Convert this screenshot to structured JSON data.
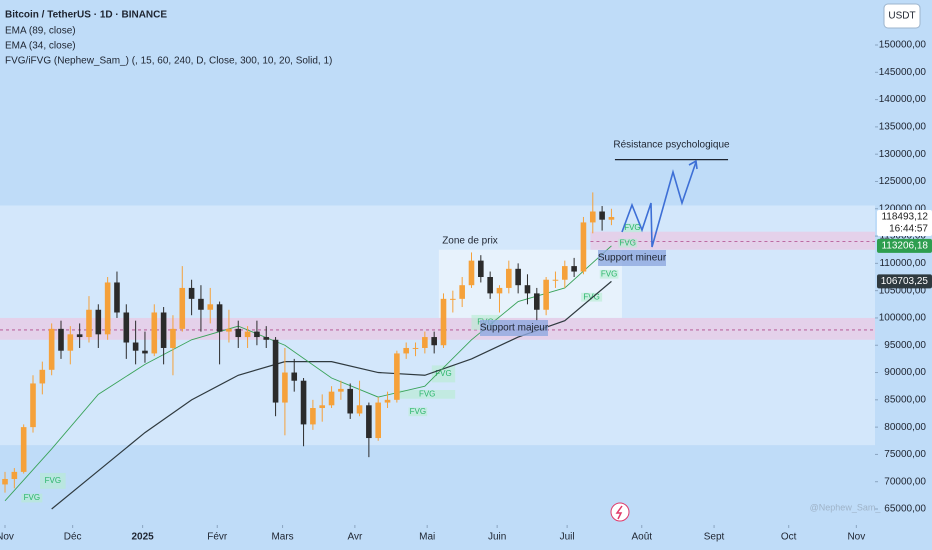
{
  "chart_data": {
    "type": "candlestick",
    "title": "Bitcoin / TetherUS · 1D · BINANCE",
    "currency": "USDT",
    "watermark": "@Nephew_Sam_",
    "indicator": "FVG/iFVG (Nephew_Sam_) (, 15, 60, 240, D, Close, 300, 10, 20, Solid, 1)",
    "up_color": "#f5a13a",
    "down_color": "#2b2b2b",
    "xlim": [
      -2.15,
      373
    ],
    "ylim": [
      62070,
      158245
    ],
    "xticks": [
      {
        "value": 0,
        "label": "Nov"
      },
      {
        "value": 29,
        "label": "Déc"
      },
      {
        "value": 59,
        "label": "2025"
      },
      {
        "value": 91,
        "label": "Févr"
      },
      {
        "value": 119,
        "label": "Mars"
      },
      {
        "value": 150,
        "label": "Avr"
      },
      {
        "value": 181,
        "label": "Mai"
      },
      {
        "value": 211,
        "label": "Juin"
      },
      {
        "value": 241,
        "label": "Juil"
      },
      {
        "value": 273,
        "label": "Août"
      },
      {
        "value": 304,
        "label": "Sept"
      },
      {
        "value": 336,
        "label": "Oct"
      },
      {
        "value": 365,
        "label": "Nov"
      }
    ],
    "yticks": [
      {
        "value": 65000,
        "label": "65000,00"
      },
      {
        "value": 70000,
        "label": "70000,00"
      },
      {
        "value": 75000,
        "label": "75000,00"
      },
      {
        "value": 80000,
        "label": "80000,00"
      },
      {
        "value": 85000,
        "label": "85000,00"
      },
      {
        "value": 90000,
        "label": "90000,00"
      },
      {
        "value": 95000,
        "label": "95000,00"
      },
      {
        "value": 100000,
        "label": "100000,00"
      },
      {
        "value": 105000,
        "label": "105000,00"
      },
      {
        "value": 110000,
        "label": "110000,00"
      },
      {
        "value": 115000,
        "label": "115000,00"
      },
      {
        "value": 120000,
        "label": "120000,00"
      },
      {
        "value": 125000,
        "label": "125000,00"
      },
      {
        "value": 130000,
        "label": "130000,00"
      },
      {
        "value": 135000,
        "label": "135000,00"
      },
      {
        "value": 140000,
        "label": "140000,00"
      },
      {
        "value": 145000,
        "label": "145000,00"
      },
      {
        "value": 150000,
        "label": "150000,00"
      }
    ],
    "x": [
      0,
      4,
      8,
      12,
      16,
      20,
      24,
      28,
      32,
      36,
      40,
      44,
      48,
      52,
      56,
      60,
      64,
      68,
      72,
      76,
      80,
      84,
      88,
      92,
      96,
      100,
      104,
      108,
      112,
      116,
      120,
      124,
      128,
      132,
      136,
      140,
      144,
      148,
      152,
      156,
      160,
      164,
      168,
      172,
      176,
      180,
      184,
      188,
      192,
      196,
      200,
      204,
      208,
      212,
      216,
      220,
      224,
      228,
      232,
      236,
      240,
      244,
      248,
      252,
      256,
      260
    ],
    "ohlc": [
      [
        69500,
        71800,
        68000,
        70500
      ],
      [
        70500,
        72500,
        68800,
        71800
      ],
      [
        71800,
        80500,
        71500,
        80000
      ],
      [
        80000,
        89500,
        79000,
        88000
      ],
      [
        88000,
        92000,
        86000,
        90500
      ],
      [
        90500,
        99000,
        89500,
        98000
      ],
      [
        98000,
        99500,
        92500,
        94000
      ],
      [
        94000,
        98500,
        91500,
        97000
      ],
      [
        97000,
        99000,
        94500,
        96500
      ],
      [
        96500,
        104000,
        95500,
        101500
      ],
      [
        101500,
        102500,
        94500,
        97000
      ],
      [
        97000,
        107500,
        96000,
        106500
      ],
      [
        106500,
        108500,
        100000,
        101000
      ],
      [
        101000,
        102500,
        92500,
        95500
      ],
      [
        95500,
        99500,
        91500,
        94000
      ],
      [
        94000,
        97500,
        91800,
        93500
      ],
      [
        93500,
        102500,
        93000,
        101000
      ],
      [
        101000,
        102000,
        91500,
        94500
      ],
      [
        94500,
        100500,
        89500,
        98000
      ],
      [
        98000,
        109500,
        97500,
        105500
      ],
      [
        105500,
        107000,
        100500,
        103500
      ],
      [
        103500,
        106000,
        97500,
        101500
      ],
      [
        101500,
        105500,
        99000,
        102500
      ],
      [
        102500,
        103000,
        91500,
        97500
      ],
      [
        97500,
        101500,
        95500,
        98000
      ],
      [
        98000,
        99500,
        94500,
        96500
      ],
      [
        96500,
        98500,
        94500,
        97500
      ],
      [
        97500,
        99500,
        95000,
        96500
      ],
      [
        96500,
        98500,
        94500,
        96000
      ],
      [
        96000,
        96500,
        82000,
        84500
      ],
      [
        84500,
        94500,
        78500,
        90000
      ],
      [
        90000,
        92500,
        86500,
        88500
      ],
      [
        88500,
        89000,
        76500,
        80500
      ],
      [
        80500,
        85000,
        79500,
        83500
      ],
      [
        83500,
        86000,
        81000,
        84000
      ],
      [
        84000,
        87500,
        83500,
        86500
      ],
      [
        86500,
        88500,
        85000,
        87000
      ],
      [
        87000,
        88000,
        81500,
        82500
      ],
      [
        82500,
        88500,
        82000,
        84000
      ],
      [
        84000,
        84500,
        74500,
        78000
      ],
      [
        78000,
        85500,
        77500,
        84500
      ],
      [
        84500,
        86500,
        83500,
        85000
      ],
      [
        85000,
        94000,
        84500,
        93500
      ],
      [
        93500,
        95500,
        92500,
        94500
      ],
      [
        94500,
        95500,
        93000,
        94500
      ],
      [
        94500,
        97500,
        93500,
        96500
      ],
      [
        96500,
        97500,
        93500,
        95000
      ],
      [
        95000,
        104500,
        94500,
        103500
      ],
      [
        103500,
        105000,
        101000,
        103500
      ],
      [
        103500,
        107500,
        102000,
        106000
      ],
      [
        106000,
        112000,
        105500,
        110500
      ],
      [
        110500,
        111500,
        106500,
        107500
      ],
      [
        107500,
        108500,
        103500,
        104500
      ],
      [
        104500,
        106000,
        101000,
        105500
      ],
      [
        105500,
        110500,
        104500,
        109000
      ],
      [
        109000,
        110000,
        104500,
        106000
      ],
      [
        106000,
        108000,
        102500,
        104500
      ],
      [
        104500,
        105500,
        99500,
        101500
      ],
      [
        101500,
        107500,
        100500,
        107000
      ],
      [
        107000,
        108500,
        105500,
        107000
      ],
      [
        107000,
        110500,
        105500,
        109500
      ],
      [
        109500,
        111000,
        107500,
        108500
      ],
      [
        108500,
        118500,
        108000,
        117500
      ],
      [
        117500,
        123000,
        115500,
        119500
      ],
      [
        119500,
        120500,
        116000,
        118000
      ],
      [
        118000,
        120000,
        117000,
        118493.12
      ]
    ],
    "series": [
      {
        "name": "EMA (89, close)",
        "color": "#2f3a3f",
        "x": [
          20,
          40,
          60,
          80,
          100,
          120,
          140,
          160,
          180,
          200,
          220,
          240,
          260
        ],
        "values": [
          65000,
          72000,
          79000,
          85000,
          89500,
          92000,
          92000,
          90000,
          89500,
          92500,
          96500,
          99500,
          106703.25
        ]
      },
      {
        "name": "EMA (34, close)",
        "color": "#3aa35a",
        "x": [
          0,
          20,
          40,
          60,
          80,
          100,
          120,
          140,
          160,
          180,
          200,
          220,
          240,
          260
        ],
        "values": [
          66500,
          76000,
          86000,
          91500,
          96000,
          98500,
          95000,
          89000,
          85500,
          87500,
          96000,
          103000,
          105500,
          113206.18
        ]
      }
    ],
    "price_tags": [
      {
        "value": 118493.12,
        "label": "118493,12",
        "sub": "16:44:57",
        "color": "#ffffff",
        "text_color": "#222222"
      },
      {
        "value": 113206.18,
        "label": "113206,18",
        "color": "#2e9e4f",
        "text_color": "#ffffff"
      },
      {
        "value": 106703.25,
        "label": "106703,25",
        "color": "#2f3a3f",
        "text_color": "#ffffff"
      }
    ],
    "zones": [
      {
        "x": [
          -2.15,
          373
        ],
        "y": [
          76700,
          120600
        ],
        "color": "#d6e9fb"
      },
      {
        "x": [
          186,
          264.5
        ],
        "y": [
          100000,
          112500
        ],
        "color": "#eaf3fc"
      },
      {
        "x": [
          -2.15,
          373
        ],
        "y": [
          96000,
          100000
        ],
        "color": "#e6cce6",
        "dash": 97800
      },
      {
        "x": [
          251,
          373
        ],
        "y": [
          112500,
          115800
        ],
        "color": "#e6cce6",
        "dash": 114000
      }
    ],
    "fvg": [
      {
        "label": "FVG",
        "x": [
          15,
          26
        ],
        "y": [
          68700,
          71600
        ]
      },
      {
        "label": "FVG",
        "x": [
          7,
          16
        ],
        "y": [
          66200,
          67800
        ]
      },
      {
        "label": "FVG",
        "x": [
          183,
          193
        ],
        "y": [
          88200,
          91300
        ]
      },
      {
        "label": "FVG",
        "x": [
          169,
          193
        ],
        "y": [
          85200,
          86800
        ]
      },
      {
        "label": "FVG",
        "x": [
          173,
          181
        ],
        "y": [
          82000,
          83600
        ]
      },
      {
        "label": "FVG",
        "x": [
          200,
          212
        ],
        "y": [
          97800,
          100550
        ]
      },
      {
        "label": "FVG",
        "x": [
          247,
          256
        ],
        "y": [
          103000,
          104600
        ]
      },
      {
        "label": "FVG",
        "x": [
          255,
          263
        ],
        "y": [
          107200,
          108800
        ]
      },
      {
        "label": "FVG",
        "x": [
          263,
          271
        ],
        "y": [
          112900,
          114500
        ]
      },
      {
        "label": "FVG",
        "x": [
          265,
          273
        ],
        "y": [
          115700,
          117300
        ]
      }
    ],
    "resistance": {
      "label": "Résistance psychologique",
      "value": 129000,
      "x": [
        261.5,
        310
      ]
    },
    "annotations": [
      "Zone de prix",
      "Support majeur",
      "Support mineur"
    ]
  }
}
